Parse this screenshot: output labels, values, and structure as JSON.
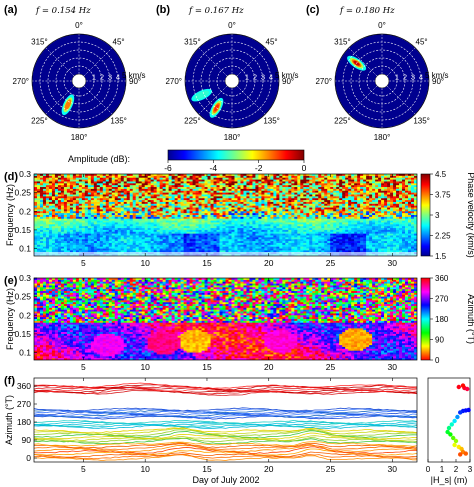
{
  "figure": {
    "panels": {
      "a": {
        "label": "(a)",
        "freq": "f = 0.154 Hz"
      },
      "b": {
        "label": "(b)",
        "freq": "f = 0.167 Hz"
      },
      "c": {
        "label": "(c)",
        "freq": "f = 0.180 Hz"
      },
      "d": {
        "label": "(d)"
      },
      "e": {
        "label": "(e)"
      },
      "f": {
        "label": "(f)"
      }
    },
    "polar_common": {
      "angle_labels": [
        "0°",
        "45°",
        "90°",
        "135°",
        "180°",
        "225°",
        "270°",
        "315°"
      ],
      "radial_labels": [
        "1",
        "2",
        "3",
        "4"
      ],
      "speed_label": "5 km/s"
    }
  },
  "chart_data": [
    {
      "type": "polar_heatmap",
      "panel": "a",
      "title": "f = 0.154 Hz",
      "radial_unit": "km/s",
      "radial_ticks": [
        1,
        2,
        3,
        4,
        5
      ],
      "angular_ticks_deg": [
        0,
        45,
        90,
        135,
        180,
        225,
        270,
        315
      ],
      "peaks": [
        {
          "azimuth_deg": 205,
          "speed_kms": 2.4,
          "amplitude_db": -1.5
        }
      ]
    },
    {
      "type": "polar_heatmap",
      "panel": "b",
      "title": "f = 0.167 Hz",
      "radial_unit": "km/s",
      "radial_ticks": [
        1,
        2,
        3,
        4,
        5
      ],
      "angular_ticks_deg": [
        0,
        45,
        90,
        135,
        180,
        225,
        270,
        315
      ],
      "peaks": [
        {
          "azimuth_deg": 210,
          "speed_kms": 3.0,
          "amplitude_db": -1
        },
        {
          "azimuth_deg": 245,
          "speed_kms": 3.3,
          "amplitude_db": -3.5
        }
      ]
    },
    {
      "type": "polar_heatmap",
      "panel": "c",
      "title": "f = 0.180 Hz",
      "radial_unit": "km/s",
      "radial_ticks": [
        1,
        2,
        3,
        4,
        5
      ],
      "angular_ticks_deg": [
        0,
        45,
        90,
        135,
        180,
        225,
        270,
        315
      ],
      "peaks": [
        {
          "azimuth_deg": 305,
          "speed_kms": 3.0,
          "amplitude_db": 0
        }
      ]
    },
    {
      "type": "colorbar",
      "title": "Amplitude (dB):",
      "range": [
        -6,
        0
      ],
      "ticks": [
        -6,
        -4,
        -2,
        0
      ]
    },
    {
      "type": "heatmap",
      "panel": "d",
      "ylabel": "Frequency (Hz)",
      "xlim": [
        1,
        32
      ],
      "ylim": [
        0.08,
        0.3
      ],
      "xticks": [
        5,
        10,
        15,
        20,
        25,
        30
      ],
      "yticks": [
        0.1,
        0.15,
        0.2,
        0.25,
        0.3
      ],
      "colorbar": {
        "label": "Phase velocity (km/s)",
        "range": [
          1.5,
          4.5
        ],
        "ticks": [
          1.5,
          2.25,
          3,
          3.75,
          4.5
        ]
      }
    },
    {
      "type": "heatmap",
      "panel": "e",
      "ylabel": "Frequency (Hz)",
      "xlim": [
        1,
        32
      ],
      "ylim": [
        0.08,
        0.3
      ],
      "xticks": [
        5,
        10,
        15,
        20,
        25,
        30
      ],
      "yticks": [
        0.1,
        0.15,
        0.2,
        0.25,
        0.3
      ],
      "colorbar": {
        "label": "Azimuth (°T)",
        "range": [
          0,
          360
        ],
        "ticks": [
          0,
          90,
          180,
          270,
          360
        ]
      },
      "blobs": [
        {
          "day": 14.0,
          "freq": 0.13,
          "azimuth": 45
        },
        {
          "day": 27.0,
          "freq": 0.135,
          "azimuth": 40
        },
        {
          "day": 11.5,
          "freq": 0.125,
          "azimuth": 330
        },
        {
          "day": 7.0,
          "freq": 0.12,
          "azimuth": 300
        },
        {
          "day": 21.0,
          "freq": 0.13,
          "azimuth": 310
        }
      ]
    },
    {
      "type": "line",
      "panel": "f",
      "xlabel": "Day of July 2002",
      "ylabel": "Azimuth (°T)",
      "xlim": [
        1,
        32
      ],
      "ylim": [
        -20,
        400
      ],
      "xticks": [
        5,
        10,
        15,
        20,
        25,
        30
      ],
      "yticks": [
        0,
        90,
        180,
        270,
        360
      ],
      "series_groups": [
        {
          "band": "red",
          "mean_azimuth": 345,
          "count": 8
        },
        {
          "band": "blue",
          "mean_azimuth": 225,
          "count": 9
        },
        {
          "band": "cyan",
          "mean_azimuth": 170,
          "count": 6
        },
        {
          "band": "green-yellow",
          "mean_azimuth": 110,
          "count": 8
        },
        {
          "band": "orange",
          "mean_azimuth": 35,
          "count": 9
        }
      ]
    },
    {
      "type": "scatter",
      "panel": "f-inset",
      "xlabel": "|H_s| (m)",
      "xlim": [
        0,
        3
      ],
      "xticks": [
        0,
        1,
        2,
        3
      ],
      "ylim": [
        -20,
        400
      ],
      "points": [
        {
          "x": 2.2,
          "y": 355
        },
        {
          "x": 2.6,
          "y": 350
        },
        {
          "x": 2.8,
          "y": 345
        },
        {
          "x": 2.5,
          "y": 362
        },
        {
          "x": 2.9,
          "y": 240
        },
        {
          "x": 2.7,
          "y": 238
        },
        {
          "x": 2.5,
          "y": 235
        },
        {
          "x": 2.3,
          "y": 228
        },
        {
          "x": 2.1,
          "y": 205
        },
        {
          "x": 1.9,
          "y": 185
        },
        {
          "x": 1.7,
          "y": 168
        },
        {
          "x": 1.5,
          "y": 150
        },
        {
          "x": 1.4,
          "y": 130
        },
        {
          "x": 1.6,
          "y": 118
        },
        {
          "x": 1.8,
          "y": 100
        },
        {
          "x": 2.0,
          "y": 85
        },
        {
          "x": 1.9,
          "y": 65
        },
        {
          "x": 2.2,
          "y": 55
        },
        {
          "x": 2.4,
          "y": 45
        },
        {
          "x": 2.5,
          "y": 30
        },
        {
          "x": 2.7,
          "y": 22
        },
        {
          "x": 2.3,
          "y": 18
        }
      ]
    }
  ]
}
